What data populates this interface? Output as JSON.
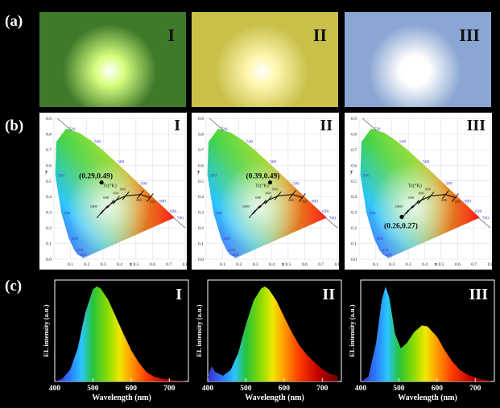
{
  "panels": {
    "a": "(a)",
    "b": "(b)",
    "c": "(c)"
  },
  "photos": [
    {
      "roman": "I",
      "bg": "#3f7a2a",
      "glow": "#d8ff80"
    },
    {
      "roman": "II",
      "bg": "#c9c04a",
      "glow": "#fff7b0"
    },
    {
      "roman": "III",
      "bg": "#8aa6d2",
      "glow": "#ffffff"
    }
  ],
  "cie": {
    "y_axis_label": "y",
    "x_axis_label": "x",
    "ticks": [
      "0.0",
      "0.1",
      "0.2",
      "0.3",
      "0.4",
      "0.5",
      "0.6",
      "0.7",
      "0.8",
      "0.9"
    ],
    "xticks": [
      "0.1",
      "0.2",
      "0.3",
      "0.4",
      "0.5",
      "0.6",
      "0.7",
      "0.8"
    ],
    "wavelength_labels": [
      "460",
      "470",
      "480",
      "490",
      "500",
      "520",
      "540",
      "560",
      "580",
      "600",
      "620",
      "700"
    ],
    "cct_label": "Tc(°K)",
    "cct_marks": [
      "10000",
      "6000",
      "4000",
      "3000",
      "2000",
      "1500"
    ],
    "plots": [
      {
        "roman": "I",
        "point": [
          0.29,
          0.49
        ],
        "label": "(0.29,0.49)"
      },
      {
        "roman": "II",
        "point": [
          0.39,
          0.49
        ],
        "label": "(0.39,0.49)"
      },
      {
        "roman": "III",
        "point": [
          0.26,
          0.27
        ],
        "label": "(0.26,0.27)"
      }
    ]
  },
  "chart_data": [
    {
      "type": "area",
      "title": "",
      "roman": "I",
      "xlabel": "Wavelength (nm)",
      "ylabel": "EL intensity (a.u.)",
      "xlim": [
        400,
        750
      ],
      "xticks": [
        400,
        500,
        600,
        700
      ],
      "x": [
        400,
        420,
        440,
        460,
        480,
        500,
        510,
        520,
        540,
        560,
        580,
        600,
        620,
        640,
        660,
        680,
        700,
        720,
        740
      ],
      "y": [
        0.0,
        0.03,
        0.12,
        0.35,
        0.72,
        0.97,
        1.0,
        0.98,
        0.86,
        0.68,
        0.5,
        0.33,
        0.2,
        0.1,
        0.05,
        0.03,
        0.02,
        0.01,
        0.01
      ]
    },
    {
      "type": "area",
      "title": "",
      "roman": "II",
      "xlabel": "Wavelength (nm)",
      "ylabel": "EL intensity (a.u.)",
      "xlim": [
        400,
        750
      ],
      "xticks": [
        400,
        500,
        600,
        700
      ],
      "x": [
        400,
        410,
        420,
        440,
        460,
        480,
        500,
        520,
        540,
        550,
        560,
        580,
        600,
        620,
        640,
        660,
        680,
        700,
        720,
        740
      ],
      "y": [
        0.05,
        0.16,
        0.1,
        0.06,
        0.12,
        0.3,
        0.6,
        0.85,
        0.98,
        1.0,
        0.97,
        0.85,
        0.68,
        0.52,
        0.38,
        0.28,
        0.2,
        0.13,
        0.08,
        0.06
      ]
    },
    {
      "type": "area",
      "title": "",
      "roman": "III",
      "xlabel": "Wavelength (nm)",
      "ylabel": "EL intensity (a.u.)",
      "xlim": [
        400,
        750
      ],
      "xticks": [
        400,
        500,
        600,
        700
      ],
      "x": [
        400,
        420,
        440,
        455,
        465,
        475,
        490,
        505,
        520,
        540,
        560,
        575,
        600,
        620,
        640,
        660,
        680,
        700,
        720,
        740
      ],
      "y": [
        0.0,
        0.05,
        0.4,
        0.85,
        1.0,
        0.88,
        0.5,
        0.35,
        0.4,
        0.52,
        0.59,
        0.58,
        0.47,
        0.33,
        0.21,
        0.12,
        0.07,
        0.04,
        0.02,
        0.01
      ]
    }
  ]
}
